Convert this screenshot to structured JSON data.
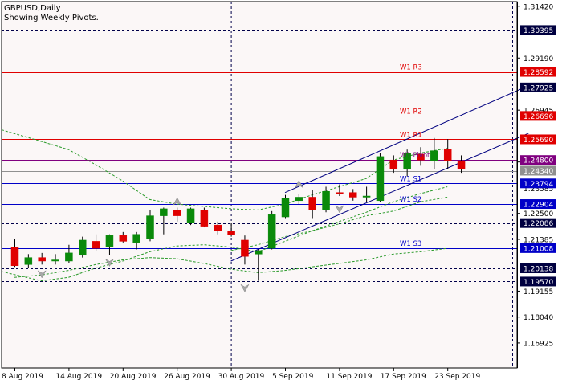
{
  "header": {
    "symbol_line": "GBPUSD,Daily",
    "subtitle": "Showing Weekly Pivots."
  },
  "colors": {
    "background": "#fbf7f7",
    "frame": "#000000",
    "bull": "#0a8a0a",
    "bear": "#e00000",
    "pivot_red": "#e00000",
    "pivot_blue": "#0000c8",
    "pivot_purple": "#800080",
    "dash_line": "#00004a",
    "channel": "#000080",
    "envelope": "#2a9a2a",
    "grey_price": "#909090"
  },
  "chart_data": {
    "type": "candlestick",
    "title": "GBPUSD,Daily",
    "subtitle": "Showing Weekly Pivots.",
    "ylim": [
      1.1585,
      1.3162
    ],
    "y_ticks": [
      "1.31420",
      "1.29190",
      "1.26945",
      "1.24715",
      "1.22500",
      "1.21385",
      "1.19155",
      "1.18040",
      "1.16925"
    ],
    "x_ticks": [
      {
        "i": 0,
        "label": "8 Aug 2019"
      },
      {
        "i": 4,
        "label": "14 Aug 2019"
      },
      {
        "i": 8,
        "label": "20 Aug 2019"
      },
      {
        "i": 12,
        "label": "26 Aug 2019"
      },
      {
        "i": 16,
        "label": "30 Aug 2019"
      },
      {
        "i": 20,
        "label": "5 Sep 2019"
      },
      {
        "i": 24,
        "label": "11 Sep 2019"
      },
      {
        "i": 28,
        "label": "17 Sep 2019"
      },
      {
        "i": 32,
        "label": "23 Sep 2019"
      }
    ],
    "candles": [
      {
        "o": 1.2105,
        "h": 1.214,
        "l": 1.202,
        "c": 1.2025
      },
      {
        "o": 1.203,
        "h": 1.2075,
        "l": 1.2015,
        "c": 1.206
      },
      {
        "o": 1.206,
        "h": 1.208,
        "l": 1.203,
        "c": 1.2045
      },
      {
        "o": 1.2045,
        "h": 1.2075,
        "l": 1.203,
        "c": 1.205
      },
      {
        "o": 1.2045,
        "h": 1.2115,
        "l": 1.2035,
        "c": 1.208
      },
      {
        "o": 1.207,
        "h": 1.215,
        "l": 1.206,
        "c": 1.2135
      },
      {
        "o": 1.213,
        "h": 1.216,
        "l": 1.209,
        "c": 1.21
      },
      {
        "o": 1.2105,
        "h": 1.216,
        "l": 1.207,
        "c": 1.2155
      },
      {
        "o": 1.2155,
        "h": 1.217,
        "l": 1.2125,
        "c": 1.213
      },
      {
        "o": 1.2125,
        "h": 1.217,
        "l": 1.2095,
        "c": 1.216
      },
      {
        "o": 1.214,
        "h": 1.2265,
        "l": 1.213,
        "c": 1.224
      },
      {
        "o": 1.224,
        "h": 1.2275,
        "l": 1.216,
        "c": 1.227
      },
      {
        "o": 1.2265,
        "h": 1.2275,
        "l": 1.2215,
        "c": 1.224
      },
      {
        "o": 1.221,
        "h": 1.2275,
        "l": 1.22,
        "c": 1.227
      },
      {
        "o": 1.2265,
        "h": 1.2275,
        "l": 1.219,
        "c": 1.2195
      },
      {
        "o": 1.22,
        "h": 1.2215,
        "l": 1.216,
        "c": 1.2175
      },
      {
        "o": 1.2175,
        "h": 1.221,
        "l": 1.215,
        "c": 1.216
      },
      {
        "o": 1.2135,
        "h": 1.2155,
        "l": 1.203,
        "c": 1.2065
      },
      {
        "o": 1.2075,
        "h": 1.2095,
        "l": 1.196,
        "c": 1.209
      },
      {
        "o": 1.21,
        "h": 1.226,
        "l": 1.2095,
        "c": 1.2245
      },
      {
        "o": 1.2235,
        "h": 1.233,
        "l": 1.223,
        "c": 1.2315
      },
      {
        "o": 1.2305,
        "h": 1.2335,
        "l": 1.229,
        "c": 1.232
      },
      {
        "o": 1.232,
        "h": 1.235,
        "l": 1.223,
        "c": 1.2265
      },
      {
        "o": 1.2265,
        "h": 1.2365,
        "l": 1.2255,
        "c": 1.2345
      },
      {
        "o": 1.234,
        "h": 1.2375,
        "l": 1.2325,
        "c": 1.2335
      },
      {
        "o": 1.234,
        "h": 1.2355,
        "l": 1.2305,
        "c": 1.232
      },
      {
        "o": 1.232,
        "h": 1.2365,
        "l": 1.23,
        "c": 1.2325
      },
      {
        "o": 1.2305,
        "h": 1.251,
        "l": 1.23,
        "c": 1.2495
      },
      {
        "o": 1.248,
        "h": 1.25,
        "l": 1.2425,
        "c": 1.244
      },
      {
        "o": 1.244,
        "h": 1.2525,
        "l": 1.241,
        "c": 1.251
      },
      {
        "o": 1.2505,
        "h": 1.2535,
        "l": 1.2455,
        "c": 1.248
      },
      {
        "o": 1.2475,
        "h": 1.2575,
        "l": 1.244,
        "c": 1.252
      },
      {
        "o": 1.2525,
        "h": 1.257,
        "l": 1.244,
        "c": 1.2475
      },
      {
        "o": 1.2475,
        "h": 1.25,
        "l": 1.2425,
        "c": 1.244
      }
    ],
    "pivots": [
      {
        "name": "W1  R3",
        "value": 1.28592,
        "color": "#e00000",
        "label": "1.28592",
        "label_bg": "#e00000"
      },
      {
        "name": "W1  R2",
        "value": 1.26696,
        "color": "#e00000",
        "label": "1.26696",
        "label_bg": "#e00000"
      },
      {
        "name": "W1  R1",
        "value": 1.2569,
        "color": "#e00000",
        "label": "1.25690",
        "label_bg": "#e00000"
      },
      {
        "name": "W1  Pivot",
        "value": 1.248,
        "color": "#800080",
        "label": "1.24800",
        "label_bg": "#800080"
      },
      {
        "name": "W1  S1",
        "value": 1.23794,
        "color": "#0000c8",
        "label": "1.23794",
        "label_bg": "#0000c8"
      },
      {
        "name": "W1  S2",
        "value": 1.22904,
        "color": "#0000c8",
        "label": "1.22904",
        "label_bg": "#0000c8"
      },
      {
        "name": "W1  S3",
        "value": 1.21008,
        "color": "#0000c8",
        "label": "1.21008",
        "label_bg": "#0000c8"
      }
    ],
    "dashed_levels": [
      {
        "value": 1.30395,
        "label": "1.30395"
      },
      {
        "value": 1.27925,
        "label": "1.27925"
      },
      {
        "value": 1.22086,
        "label": "1.22086"
      },
      {
        "value": 1.20138,
        "label": "1.20138"
      },
      {
        "value": 1.1957,
        "label": "1.19570"
      }
    ],
    "current_price": {
      "value": 1.2434,
      "label": "1.24340"
    },
    "hidden_tick_label": "1.23585",
    "vertical_dash_index": 16,
    "channel": [
      {
        "i1": 16,
        "v1": 1.2045,
        "i2": 38,
        "v2": 1.2595
      },
      {
        "i1": 20,
        "v1": 1.234,
        "i2": 38,
        "v2": 1.28
      }
    ],
    "envelope_upper": [
      {
        "i": -1,
        "v": 1.261
      },
      {
        "i": 2,
        "v": 1.256
      },
      {
        "i": 4,
        "v": 1.2525
      },
      {
        "i": 6,
        "v": 1.246
      },
      {
        "i": 8,
        "v": 1.239
      },
      {
        "i": 10,
        "v": 1.231
      },
      {
        "i": 12,
        "v": 1.229
      },
      {
        "i": 14,
        "v": 1.228
      },
      {
        "i": 16,
        "v": 1.227
      },
      {
        "i": 18,
        "v": 1.2265
      },
      {
        "i": 20,
        "v": 1.229
      },
      {
        "i": 22,
        "v": 1.233
      },
      {
        "i": 24,
        "v": 1.2365
      },
      {
        "i": 26,
        "v": 1.24
      },
      {
        "i": 28,
        "v": 1.248
      },
      {
        "i": 30,
        "v": 1.251
      },
      {
        "i": 32,
        "v": 1.253
      }
    ],
    "envelope_lower": [
      {
        "i": -1,
        "v": 1.2
      },
      {
        "i": 2,
        "v": 1.196
      },
      {
        "i": 4,
        "v": 1.1975
      },
      {
        "i": 6,
        "v": 1.2015
      },
      {
        "i": 8,
        "v": 1.2045
      },
      {
        "i": 10,
        "v": 1.2085
      },
      {
        "i": 12,
        "v": 1.211
      },
      {
        "i": 14,
        "v": 1.2115
      },
      {
        "i": 16,
        "v": 1.2105
      },
      {
        "i": 18,
        "v": 1.2085
      },
      {
        "i": 20,
        "v": 1.213
      },
      {
        "i": 22,
        "v": 1.2175
      },
      {
        "i": 24,
        "v": 1.2215
      },
      {
        "i": 26,
        "v": 1.2255
      },
      {
        "i": 28,
        "v": 1.23
      },
      {
        "i": 30,
        "v": 1.2335
      },
      {
        "i": 32,
        "v": 1.2365
      }
    ],
    "envelope_middle": [
      {
        "i": 16,
        "v": 1.209
      },
      {
        "i": 18,
        "v": 1.2115
      },
      {
        "i": 20,
        "v": 1.215
      },
      {
        "i": 22,
        "v": 1.2175
      },
      {
        "i": 24,
        "v": 1.2205
      },
      {
        "i": 26,
        "v": 1.224
      },
      {
        "i": 28,
        "v": 1.226
      },
      {
        "i": 30,
        "v": 1.23
      },
      {
        "i": 32,
        "v": 1.232
      }
    ],
    "envelope_bottom": [
      {
        "i": 0,
        "v": 1.1975
      },
      {
        "i": 2,
        "v": 1.1985
      },
      {
        "i": 4,
        "v": 1.2005
      },
      {
        "i": 6,
        "v": 1.203
      },
      {
        "i": 8,
        "v": 1.205
      },
      {
        "i": 10,
        "v": 1.206
      },
      {
        "i": 12,
        "v": 1.2055
      },
      {
        "i": 14,
        "v": 1.2035
      },
      {
        "i": 16,
        "v": 1.201
      },
      {
        "i": 18,
        "v": 1.1995
      },
      {
        "i": 20,
        "v": 1.2005
      },
      {
        "i": 22,
        "v": 1.202
      },
      {
        "i": 24,
        "v": 1.2035
      },
      {
        "i": 26,
        "v": 1.205
      },
      {
        "i": 28,
        "v": 1.2075
      },
      {
        "i": 30,
        "v": 1.2085
      },
      {
        "i": 32,
        "v": 1.21
      }
    ],
    "fractals": [
      {
        "i": 2,
        "v": 1.199,
        "dir": "down"
      },
      {
        "i": 7,
        "v": 1.204,
        "dir": "down"
      },
      {
        "i": 12,
        "v": 1.23,
        "dir": "up"
      },
      {
        "i": 17,
        "v": 1.193,
        "dir": "down"
      },
      {
        "i": 21,
        "v": 1.2375,
        "dir": "up"
      },
      {
        "i": 24,
        "v": 1.227,
        "dir": "down"
      }
    ]
  }
}
